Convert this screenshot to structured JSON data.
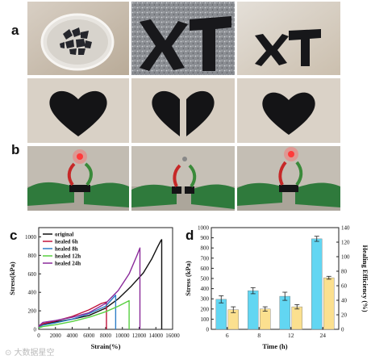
{
  "panels": {
    "a": "a",
    "b": "b",
    "c": "c",
    "d": "d"
  },
  "watermark": "⊙ 大数据星空",
  "colors": {
    "wood": "#c9bba8",
    "sample": "#1a1a1e",
    "glove": "#2f7a3c",
    "glove_dark": "#1e5628",
    "led": "#ff3a3a",
    "bar_stress": "#62d6f2",
    "bar_efficiency": "#fbe08f"
  },
  "panel_c_legend": [
    "original",
    "healed 6h",
    "healed 8h",
    "healed 12h",
    "healed 24h"
  ],
  "chart_data": [
    {
      "type": "line",
      "panel": "c",
      "xlabel": "Strain(%)",
      "ylabel": "Stress(kPa)",
      "xlim": [
        0,
        16000
      ],
      "ylim": [
        0,
        1100
      ],
      "xticks": [
        0,
        2000,
        4000,
        6000,
        8000,
        10000,
        12000,
        14000,
        16000
      ],
      "yticks": [
        0,
        200,
        400,
        600,
        800,
        1000
      ],
      "legend_position": "top-left",
      "series": [
        {
          "name": "original",
          "color": "#111111",
          "x": [
            0,
            500,
            2000,
            4000,
            6000,
            8000,
            9500,
            11000,
            12500,
            13500,
            14200,
            14600,
            14700,
            14700
          ],
          "y": [
            30,
            55,
            80,
            110,
            150,
            230,
            330,
            460,
            610,
            760,
            890,
            960,
            970,
            0
          ]
        },
        {
          "name": "healed 6h",
          "color": "#c0143c",
          "x": [
            0,
            500,
            2000,
            4000,
            6000,
            7500,
            8100,
            8100
          ],
          "y": [
            25,
            60,
            90,
            140,
            210,
            280,
            295,
            0
          ]
        },
        {
          "name": "healed 8h",
          "color": "#2e7fc8",
          "x": [
            0,
            500,
            2000,
            4000,
            6000,
            8000,
            9200,
            9200
          ],
          "y": [
            20,
            45,
            70,
            110,
            170,
            250,
            370,
            0
          ]
        },
        {
          "name": "healed 12h",
          "color": "#58d040",
          "x": [
            0,
            500,
            2000,
            4000,
            6000,
            8000,
            9500,
            10800,
            10800
          ],
          "y": [
            15,
            30,
            50,
            85,
            130,
            190,
            250,
            310,
            0
          ]
        },
        {
          "name": "healed 24h",
          "color": "#8a2a9a",
          "x": [
            0,
            500,
            2000,
            4000,
            6000,
            8000,
            9500,
            10800,
            11700,
            12100,
            12100
          ],
          "y": [
            35,
            75,
            95,
            130,
            180,
            280,
            420,
            600,
            790,
            880,
            0
          ]
        }
      ]
    },
    {
      "type": "bar",
      "panel": "d",
      "xlabel": "Time (h)",
      "ylabel": "Stress (kPa)",
      "y2label": "Healing Efficiency (%)",
      "categories": [
        "6",
        "8",
        "12",
        "24"
      ],
      "ylim": [
        0,
        1000
      ],
      "y2lim": [
        0,
        140
      ],
      "yticks": [
        0,
        100,
        200,
        300,
        400,
        500,
        600,
        700,
        800,
        900,
        1000
      ],
      "y2ticks": [
        0,
        20,
        40,
        60,
        80,
        100,
        120,
        140
      ],
      "series": [
        {
          "name": "",
          "axis": "left",
          "values": [
            295,
            380,
            325,
            890
          ],
          "errors": [
            35,
            30,
            40,
            25
          ]
        },
        {
          "name": "",
          "axis": "right",
          "values": [
            27,
            28,
            31,
            71
          ],
          "errors": [
            4,
            3,
            3,
            2
          ]
        }
      ]
    }
  ]
}
